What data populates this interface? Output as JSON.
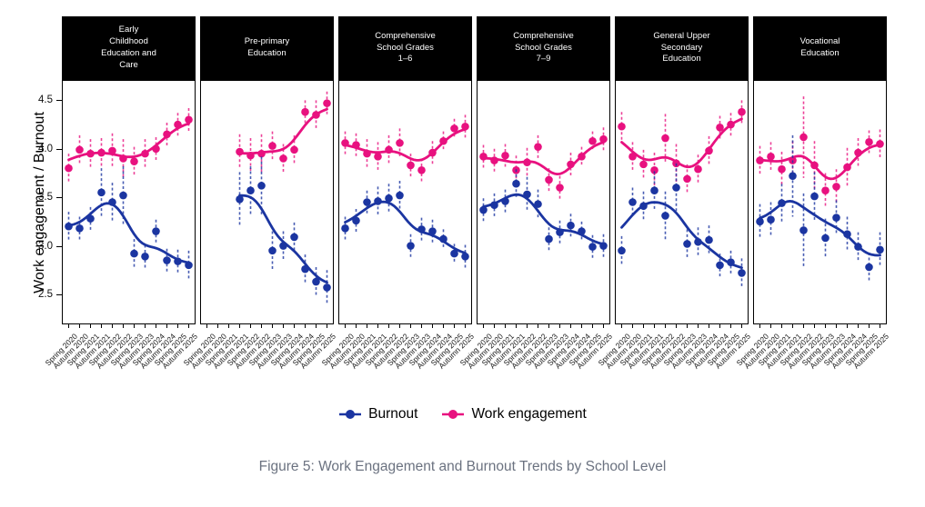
{
  "figure": {
    "caption": "Figure 5: Work Engagement and Burnout Trends by School Level"
  },
  "colors": {
    "burnout": "#1B35A1",
    "engagement": "#E8117F",
    "strip_bg": "#000000",
    "strip_text": "#FFFFFF",
    "caption_text": "#6B7280"
  },
  "y_axis": {
    "title": "Work engagement / Burnout",
    "tick_labels": [
      "4.5",
      "4.0",
      "3.5",
      "3.0",
      "2.5"
    ],
    "tick_values": [
      4.5,
      4.0,
      3.5,
      3.0,
      2.5
    ]
  },
  "legend": [
    {
      "key": "burnout",
      "label": "Burnout",
      "color": "#1B35A1"
    },
    {
      "key": "engagement",
      "label": "Work engagement",
      "color": "#E8117F"
    }
  ],
  "chart_data": {
    "type": "scatter",
    "subtype": "points-with-errorbars-and-loess-smooth, 6 facets",
    "ylim": [
      2.19,
      4.71
    ],
    "y_ticks": [
      2.5,
      3.0,
      3.5,
      4.0,
      4.5
    ],
    "grid": false,
    "legend_position": "bottom",
    "x_categories": [
      "Spring 2020",
      "Autumn 2020",
      "Spring 2021",
      "Autumn 2021",
      "Spring 2022",
      "Autumn 2022",
      "Spring 2023",
      "Autumn 2023",
      "Spring 2024",
      "Autumn 2024",
      "Spring 2025",
      "Autumn 2025"
    ],
    "facets": [
      {
        "title": "Early Childhood Education and Care",
        "title_lines": [
          "Early",
          "Childhood",
          "Education and",
          "Care"
        ],
        "series": {
          "engagement": {
            "values": [
              3.8,
              3.99,
              3.95,
              3.96,
              3.98,
              3.9,
              3.87,
              3.95,
              4.0,
              4.15,
              4.25,
              4.3
            ],
            "err": [
              0.15,
              0.15,
              0.15,
              0.15,
              0.18,
              0.2,
              0.15,
              0.15,
              0.12,
              0.12,
              0.12,
              0.12
            ]
          },
          "burnout": {
            "values": [
              3.2,
              3.18,
              3.28,
              3.55,
              3.45,
              3.52,
              2.92,
              2.89,
              3.15,
              2.85,
              2.84,
              2.8
            ],
            "err": [
              0.15,
              0.12,
              0.12,
              0.25,
              0.2,
              0.3,
              0.15,
              0.12,
              0.12,
              0.12,
              0.12,
              0.15
            ]
          }
        }
      },
      {
        "title": "Pre-primary Education",
        "title_lines": [
          "Pre-primary",
          "Education"
        ],
        "series": {
          "engagement": {
            "values": [
              null,
              null,
              null,
              3.97,
              3.93,
              3.95,
              4.03,
              3.9,
              3.99,
              4.38,
              4.35,
              4.47
            ],
            "err": [
              null,
              null,
              null,
              0.18,
              0.18,
              0.2,
              0.15,
              0.15,
              0.15,
              0.12,
              0.15,
              0.12
            ]
          },
          "burnout": {
            "values": [
              null,
              null,
              null,
              3.48,
              3.57,
              3.62,
              2.95,
              3.0,
              3.09,
              2.76,
              2.63,
              2.57
            ],
            "err": [
              null,
              null,
              null,
              0.28,
              0.25,
              0.3,
              0.2,
              0.15,
              0.15,
              0.15,
              0.15,
              0.18
            ]
          }
        }
      },
      {
        "title": "Comprehensive School Grades 1–6",
        "title_lines": [
          "Comprehensive",
          "School Grades",
          "1–6"
        ],
        "series": {
          "engagement": {
            "values": [
              4.06,
              4.04,
              3.95,
              3.92,
              3.99,
              4.06,
              3.83,
              3.78,
              3.96,
              4.08,
              4.21,
              4.23
            ],
            "err": [
              0.12,
              0.12,
              0.15,
              0.15,
              0.15,
              0.15,
              0.12,
              0.12,
              0.12,
              0.1,
              0.1,
              0.12
            ]
          },
          "burnout": {
            "values": [
              3.18,
              3.26,
              3.45,
              3.46,
              3.49,
              3.52,
              3.0,
              3.17,
              3.15,
              3.07,
              2.92,
              2.89
            ],
            "err": [
              0.12,
              0.12,
              0.12,
              0.15,
              0.15,
              0.15,
              0.12,
              0.12,
              0.12,
              0.1,
              0.1,
              0.12
            ]
          }
        }
      },
      {
        "title": "Comprehensive School Grades 7–9",
        "title_lines": [
          "Comprehensive",
          "School Grades",
          "7–9"
        ],
        "series": {
          "engagement": {
            "values": [
              3.92,
              3.88,
              3.93,
              3.78,
              3.86,
              4.02,
              3.68,
              3.6,
              3.84,
              3.92,
              4.08,
              4.1
            ],
            "err": [
              0.12,
              0.12,
              0.12,
              0.15,
              0.15,
              0.12,
              0.12,
              0.12,
              0.12,
              0.1,
              0.1,
              0.12
            ]
          },
          "burnout": {
            "values": [
              3.37,
              3.42,
              3.46,
              3.64,
              3.53,
              3.43,
              3.07,
              3.14,
              3.21,
              3.15,
              2.99,
              3.0
            ],
            "err": [
              0.12,
              0.12,
              0.12,
              0.15,
              0.18,
              0.15,
              0.12,
              0.12,
              0.12,
              0.1,
              0.12,
              0.12
            ]
          }
        }
      },
      {
        "title": "General Upper Secondary Education",
        "title_lines": [
          "General Upper",
          "Secondary",
          "Education"
        ],
        "series": {
          "engagement": {
            "values": [
              4.23,
              3.92,
              3.84,
              3.78,
              4.11,
              3.85,
              3.69,
              3.79,
              3.98,
              4.22,
              4.25,
              4.38
            ],
            "err": [
              0.15,
              0.15,
              0.15,
              0.18,
              0.25,
              0.2,
              0.15,
              0.15,
              0.15,
              0.12,
              0.12,
              0.12
            ]
          },
          "burnout": {
            "values": [
              2.95,
              3.45,
              3.41,
              3.57,
              3.31,
              3.6,
              3.02,
              3.04,
              3.06,
              2.8,
              2.83,
              2.72
            ],
            "err": [
              0.15,
              0.15,
              0.15,
              0.2,
              0.25,
              0.25,
              0.15,
              0.15,
              0.15,
              0.12,
              0.12,
              0.15
            ]
          }
        }
      },
      {
        "title": "Vocational Education",
        "title_lines": [
          "Vocational",
          "Education"
        ],
        "series": {
          "engagement": {
            "values": [
              3.88,
              3.92,
              3.79,
              3.88,
              4.12,
              3.83,
              3.57,
              3.61,
              3.81,
              3.96,
              4.07,
              4.05
            ],
            "err": [
              0.15,
              0.15,
              0.18,
              0.2,
              0.42,
              0.25,
              0.18,
              0.18,
              0.2,
              0.15,
              0.12,
              0.15
            ]
          },
          "burnout": {
            "values": [
              3.25,
              3.27,
              3.44,
              3.72,
              3.16,
              3.51,
              3.08,
              3.29,
              3.12,
              2.99,
              2.78,
              2.96
            ],
            "err": [
              0.18,
              0.18,
              0.2,
              0.42,
              0.38,
              0.25,
              0.2,
              0.18,
              0.18,
              0.15,
              0.15,
              0.18
            ]
          }
        }
      }
    ]
  }
}
